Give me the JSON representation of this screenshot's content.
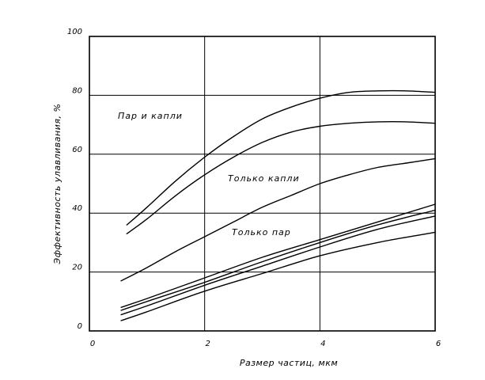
{
  "chart_data": {
    "type": "line",
    "title": "",
    "xlabel": "Размер частиц, мкм",
    "ylabel": "Эффективность улавливания, %",
    "xlim": [
      0,
      6
    ],
    "ylim": [
      0,
      100
    ],
    "x_ticks": [
      "0",
      "2",
      "4",
      "6"
    ],
    "y_ticks": [
      "0",
      "20",
      "40",
      "60",
      "80",
      "100"
    ],
    "grid": true,
    "annotations": [
      "Пар и капли",
      "Только капли",
      "Только пар"
    ],
    "series": [
      {
        "x": [
          0.65,
          1.0,
          1.5,
          2.0,
          2.5,
          3.0,
          3.5,
          4.0,
          4.5,
          5.0,
          5.5,
          6.0
        ],
        "values": [
          36,
          42,
          51,
          59,
          66,
          72,
          76,
          79,
          81,
          81.5,
          81.5,
          81
        ]
      },
      {
        "x": [
          0.65,
          1.0,
          1.5,
          2.0,
          2.5,
          3.0,
          3.5,
          4.0,
          4.5,
          5.0,
          5.5,
          6.0
        ],
        "values": [
          33,
          38,
          46,
          53,
          59,
          64,
          67.5,
          69.5,
          70.5,
          71,
          71,
          70.5
        ]
      },
      {
        "x": [
          0.55,
          1.0,
          1.5,
          2.0,
          2.5,
          3.0,
          3.5,
          4.0,
          4.5,
          5.0,
          5.5,
          6.0
        ],
        "values": [
          17,
          21.5,
          27,
          32,
          37,
          42,
          46,
          50,
          53,
          55.5,
          57,
          58.5
        ]
      },
      {
        "x": [
          0.55,
          1.0,
          2.0,
          3.0,
          4.0,
          5.0,
          6.0
        ],
        "values": [
          8,
          11,
          18,
          25,
          31,
          37,
          43
        ]
      },
      {
        "x": [
          0.55,
          1.0,
          2.0,
          3.0,
          4.0,
          5.0,
          6.0
        ],
        "values": [
          7,
          10,
          16.5,
          23.5,
          30,
          36,
          41
        ]
      },
      {
        "x": [
          0.55,
          1.0,
          2.0,
          3.0,
          4.0,
          5.0,
          6.0
        ],
        "values": [
          5.5,
          8.5,
          15.5,
          22,
          28.5,
          34.5,
          39
        ]
      },
      {
        "x": [
          0.55,
          1.0,
          2.0,
          3.0,
          4.0,
          5.0,
          6.0
        ],
        "values": [
          3.5,
          6.5,
          13.5,
          19.5,
          25.5,
          30,
          33.5
        ]
      }
    ]
  }
}
